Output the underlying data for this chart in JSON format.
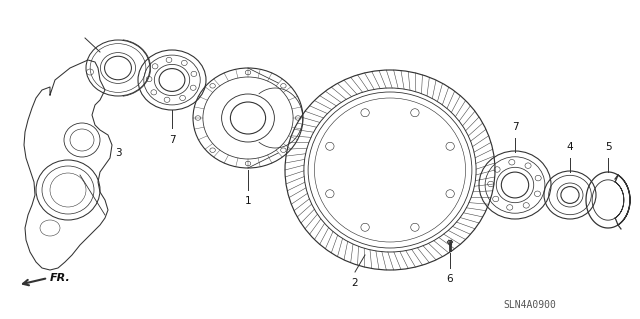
{
  "background_color": "#ffffff",
  "diagram_code": "SLN4A0900",
  "line_color": "#333333",
  "text_color": "#111111",
  "fontsize_label": 7.5,
  "fontsize_code": 7
}
